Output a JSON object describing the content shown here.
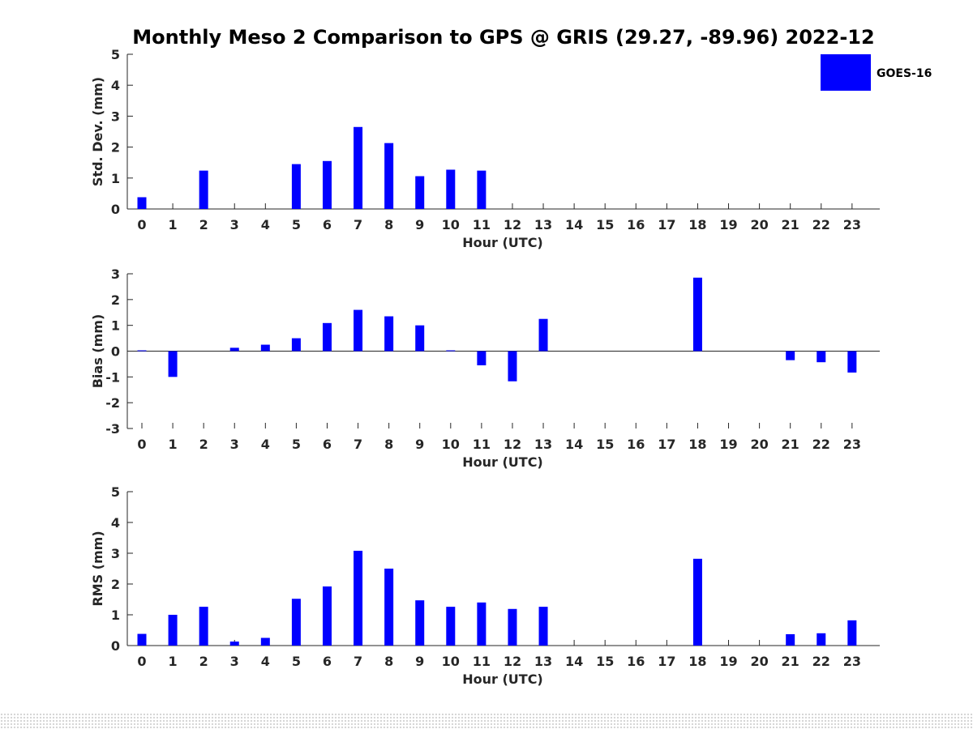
{
  "chart_data": [
    {
      "type": "bar",
      "title": "Monthly Meso 2 Comparison to GPS @ GRIS (29.27, -89.96) 2022-12",
      "xlabel": "Hour (UTC)",
      "ylabel": "Std. Dev. (mm)",
      "ylim": [
        0,
        5
      ],
      "yticks": [
        0,
        1,
        2,
        3,
        4,
        5
      ],
      "categories": [
        "0",
        "1",
        "2",
        "3",
        "4",
        "5",
        "6",
        "7",
        "8",
        "9",
        "10",
        "11",
        "12",
        "13",
        "14",
        "15",
        "16",
        "17",
        "18",
        "19",
        "20",
        "21",
        "22",
        "23"
      ],
      "series": [
        {
          "name": "GOES-16",
          "color": "#0000ff",
          "values": [
            0.38,
            null,
            1.24,
            null,
            null,
            1.45,
            1.55,
            2.65,
            2.13,
            1.06,
            1.27,
            1.24,
            null,
            null,
            null,
            null,
            null,
            null,
            null,
            null,
            null,
            null,
            null,
            null
          ]
        }
      ],
      "legend": {
        "position": "top-right",
        "entries": [
          "GOES-16"
        ]
      }
    },
    {
      "type": "bar",
      "xlabel": "Hour (UTC)",
      "ylabel": "Bias (mm)",
      "ylim": [
        -3,
        3
      ],
      "yticks": [
        -3,
        -2,
        -1,
        0,
        1,
        2,
        3
      ],
      "categories": [
        "0",
        "1",
        "2",
        "3",
        "4",
        "5",
        "6",
        "7",
        "8",
        "9",
        "10",
        "11",
        "12",
        "13",
        "14",
        "15",
        "16",
        "17",
        "18",
        "19",
        "20",
        "21",
        "22",
        "23"
      ],
      "series": [
        {
          "name": "GOES-16",
          "color": "#0000ff",
          "values": [
            0.03,
            -1.0,
            null,
            0.13,
            0.25,
            0.5,
            1.09,
            1.6,
            1.35,
            1.0,
            0.03,
            -0.55,
            -1.17,
            1.25,
            null,
            null,
            null,
            null,
            2.85,
            null,
            null,
            -0.35,
            -0.43,
            -0.83
          ]
        }
      ]
    },
    {
      "type": "bar",
      "xlabel": "Hour (UTC)",
      "ylabel": "RMS (mm)",
      "ylim": [
        0,
        5
      ],
      "yticks": [
        0,
        1,
        2,
        3,
        4,
        5
      ],
      "categories": [
        "0",
        "1",
        "2",
        "3",
        "4",
        "5",
        "6",
        "7",
        "8",
        "9",
        "10",
        "11",
        "12",
        "13",
        "14",
        "15",
        "16",
        "17",
        "18",
        "19",
        "20",
        "21",
        "22",
        "23"
      ],
      "series": [
        {
          "name": "GOES-16",
          "color": "#0000ff",
          "values": [
            0.38,
            1.0,
            1.26,
            0.13,
            0.25,
            1.52,
            1.92,
            3.08,
            2.5,
            1.47,
            1.26,
            1.4,
            1.19,
            1.26,
            null,
            null,
            null,
            null,
            2.82,
            null,
            null,
            0.37,
            0.4,
            0.82
          ]
        }
      ]
    }
  ]
}
